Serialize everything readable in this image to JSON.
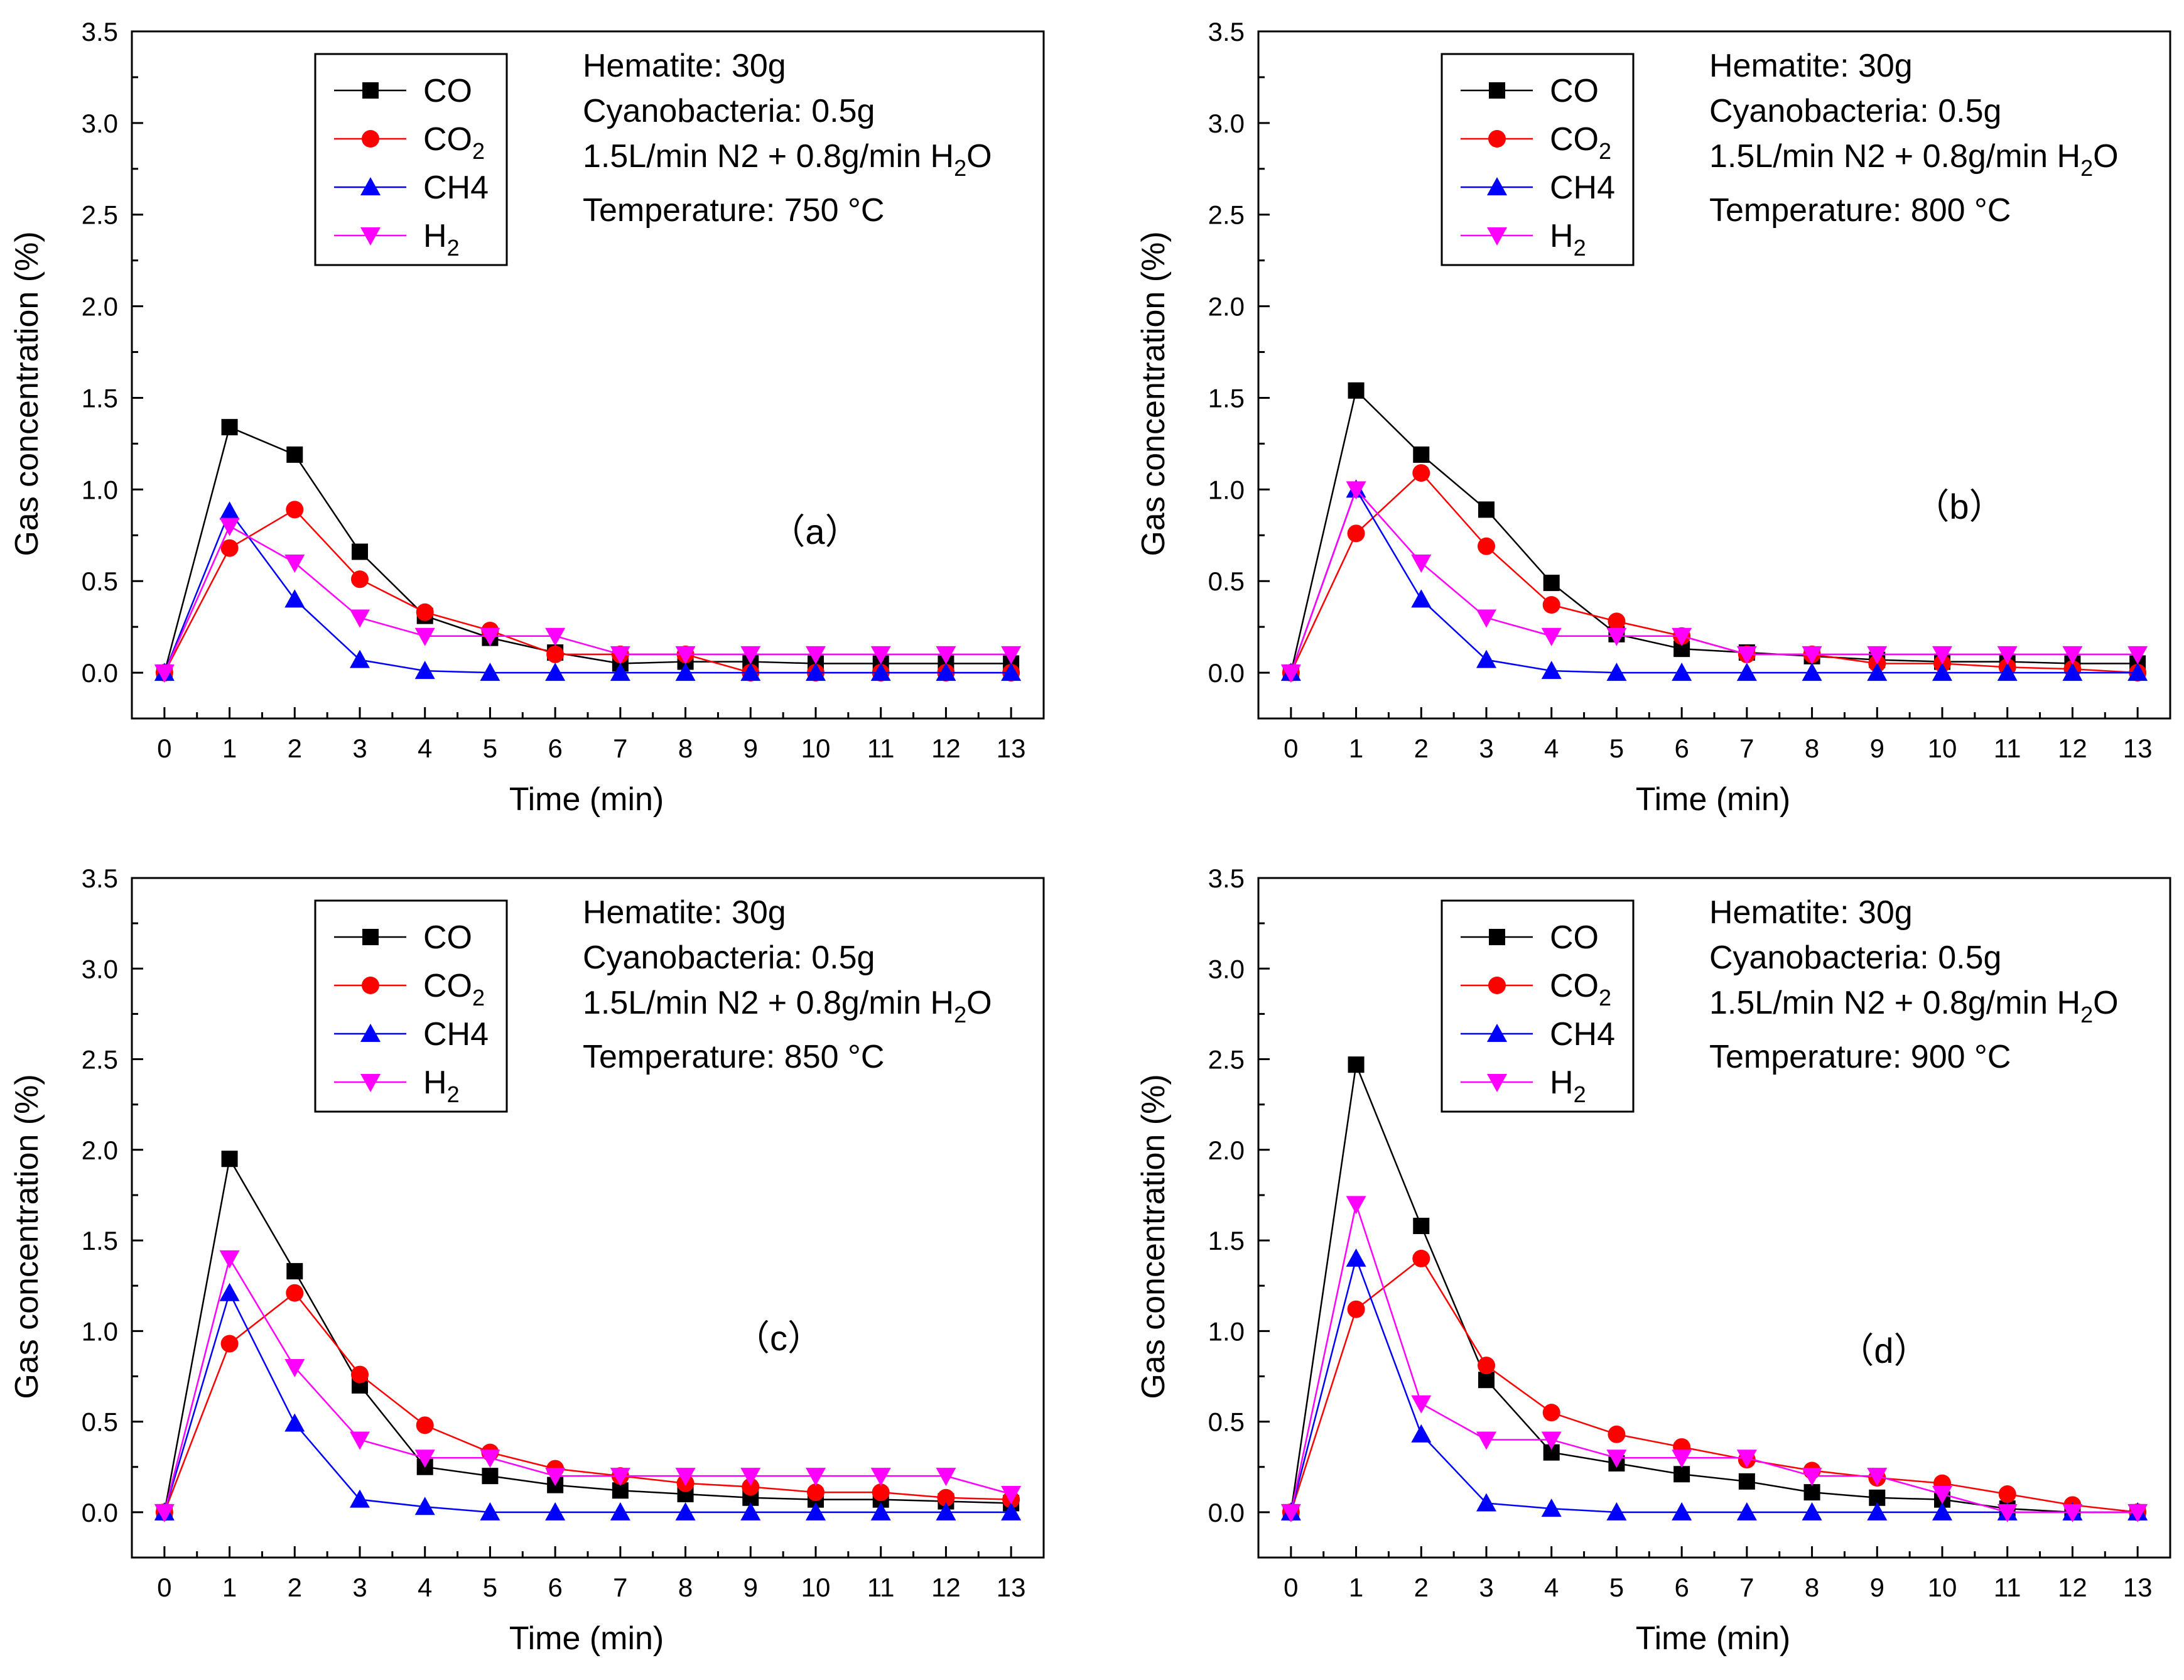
{
  "colors": {
    "CO": "#000000",
    "CO2": "#ff0000",
    "CH4": "#0000ff",
    "H2": "#ff00ff"
  },
  "chart_data": [
    {
      "type": "line",
      "panel_label": "（a）",
      "xlabel": "Time (min)",
      "ylabel": "Gas concentration (%)",
      "xlim": [
        -0.5,
        13.5
      ],
      "ylim": [
        -0.25,
        3.5
      ],
      "x": [
        0,
        1,
        2,
        3,
        4,
        5,
        6,
        7,
        8,
        9,
        10,
        11,
        12,
        13
      ],
      "x_ticks": [
        "0",
        "1",
        "2",
        "3",
        "4",
        "5",
        "6",
        "7",
        "8",
        "9",
        "10",
        "11",
        "12",
        "13"
      ],
      "y_ticks": [
        "0.0",
        "0.5",
        "1.0",
        "1.5",
        "2.0",
        "2.5",
        "3.0",
        "3.5"
      ],
      "legend": [
        {
          "key": "CO",
          "label": "CO",
          "sub": ""
        },
        {
          "key": "CO2",
          "label": "CO",
          "sub": "2"
        },
        {
          "key": "CH4",
          "label": "CH4",
          "sub": ""
        },
        {
          "key": "H2",
          "label": "H",
          "sub": "2"
        }
      ],
      "info": {
        "hematite": "Hematite: 30g",
        "cyanobacteria": "Cyanobacteria: 0.5g",
        "flow_prefix": "1.5L/min N2 + 0.8g/min H",
        "flow_sub": "2",
        "flow_suffix": "O",
        "temperature": "Temperature: 750 °C"
      },
      "series": [
        {
          "name": "CO",
          "marker": "square",
          "values": [
            0,
            1.34,
            1.19,
            0.66,
            0.31,
            0.19,
            0.11,
            0.05,
            0.06,
            0.06,
            0.05,
            0.05,
            0.05,
            0.05
          ]
        },
        {
          "name": "CO2",
          "marker": "circle",
          "values": [
            0,
            0.68,
            0.89,
            0.51,
            0.33,
            0.23,
            0.1,
            0.1,
            0.1,
            0.0,
            0.0,
            0.0,
            0.0,
            0.0
          ]
        },
        {
          "name": "CH4",
          "marker": "triangle-up",
          "values": [
            0,
            0.88,
            0.4,
            0.07,
            0.01,
            0.0,
            0.0,
            0.0,
            0.0,
            0.0,
            0.0,
            0.0,
            0.0,
            0.0
          ]
        },
        {
          "name": "H2",
          "marker": "triangle-down",
          "values": [
            0,
            0.8,
            0.6,
            0.3,
            0.2,
            0.2,
            0.2,
            0.1,
            0.1,
            0.1,
            0.1,
            0.1,
            0.1,
            0.1
          ]
        }
      ]
    },
    {
      "type": "line",
      "panel_label": "（b）",
      "xlabel": "Time (min)",
      "ylabel": "Gas concentration (%)",
      "xlim": [
        -0.5,
        13.5
      ],
      "ylim": [
        -0.25,
        3.5
      ],
      "x": [
        0,
        1,
        2,
        3,
        4,
        5,
        6,
        7,
        8,
        9,
        10,
        11,
        12,
        13
      ],
      "x_ticks": [
        "0",
        "1",
        "2",
        "3",
        "4",
        "5",
        "6",
        "7",
        "8",
        "9",
        "10",
        "11",
        "12",
        "13"
      ],
      "y_ticks": [
        "0.0",
        "0.5",
        "1.0",
        "1.5",
        "2.0",
        "2.5",
        "3.0",
        "3.5"
      ],
      "legend": [
        {
          "key": "CO",
          "label": "CO",
          "sub": ""
        },
        {
          "key": "CO2",
          "label": "CO",
          "sub": "2"
        },
        {
          "key": "CH4",
          "label": "CH4",
          "sub": ""
        },
        {
          "key": "H2",
          "label": "H",
          "sub": "2"
        }
      ],
      "info": {
        "hematite": "Hematite: 30g",
        "cyanobacteria": "Cyanobacteria: 0.5g",
        "flow_prefix": "1.5L/min N2 + 0.8g/min H",
        "flow_sub": "2",
        "flow_suffix": "O",
        "temperature": "Temperature: 800 °C"
      },
      "series": [
        {
          "name": "CO",
          "marker": "square",
          "values": [
            0,
            1.54,
            1.19,
            0.89,
            0.49,
            0.21,
            0.13,
            0.11,
            0.09,
            0.07,
            0.06,
            0.06,
            0.05,
            0.05
          ]
        },
        {
          "name": "CO2",
          "marker": "circle",
          "values": [
            0,
            0.76,
            1.09,
            0.69,
            0.37,
            0.28,
            0.2,
            0.1,
            0.1,
            0.05,
            0.05,
            0.03,
            0.02,
            0.0
          ]
        },
        {
          "name": "CH4",
          "marker": "triangle-up",
          "values": [
            0,
            1.0,
            0.4,
            0.07,
            0.01,
            0.0,
            0.0,
            0.0,
            0.0,
            0.0,
            0.0,
            0.0,
            0.0,
            0.0
          ]
        },
        {
          "name": "H2",
          "marker": "triangle-down",
          "values": [
            0,
            1.0,
            0.6,
            0.3,
            0.2,
            0.2,
            0.2,
            0.1,
            0.1,
            0.1,
            0.1,
            0.1,
            0.1,
            0.1
          ]
        }
      ]
    },
    {
      "type": "line",
      "panel_label": "（c）",
      "xlabel": "Time (min)",
      "ylabel": "Gas concentration (%)",
      "xlim": [
        -0.5,
        13.5
      ],
      "ylim": [
        -0.25,
        3.5
      ],
      "x": [
        0,
        1,
        2,
        3,
        4,
        5,
        6,
        7,
        8,
        9,
        10,
        11,
        12,
        13
      ],
      "x_ticks": [
        "0",
        "1",
        "2",
        "3",
        "4",
        "5",
        "6",
        "7",
        "8",
        "9",
        "10",
        "11",
        "12",
        "13"
      ],
      "y_ticks": [
        "0.0",
        "0.5",
        "1.0",
        "1.5",
        "2.0",
        "2.5",
        "3.0",
        "3.5"
      ],
      "legend": [
        {
          "key": "CO",
          "label": "CO",
          "sub": ""
        },
        {
          "key": "CO2",
          "label": "CO",
          "sub": "2"
        },
        {
          "key": "CH4",
          "label": "CH4",
          "sub": ""
        },
        {
          "key": "H2",
          "label": "H",
          "sub": "2"
        }
      ],
      "info": {
        "hematite": "Hematite: 30g",
        "cyanobacteria": "Cyanobacteria: 0.5g",
        "flow_prefix": "1.5L/min N2 + 0.8g/min H",
        "flow_sub": "2",
        "flow_suffix": "O",
        "temperature": "Temperature: 850 °C"
      },
      "series": [
        {
          "name": "CO",
          "marker": "square",
          "values": [
            0,
            1.95,
            1.33,
            0.7,
            0.25,
            0.2,
            0.15,
            0.12,
            0.1,
            0.08,
            0.07,
            0.07,
            0.06,
            0.05
          ]
        },
        {
          "name": "CO2",
          "marker": "circle",
          "values": [
            0,
            0.93,
            1.21,
            0.76,
            0.48,
            0.33,
            0.24,
            0.2,
            0.16,
            0.14,
            0.11,
            0.11,
            0.08,
            0.07
          ]
        },
        {
          "name": "CH4",
          "marker": "triangle-up",
          "values": [
            0,
            1.21,
            0.49,
            0.07,
            0.03,
            0.0,
            0.0,
            0.0,
            0.0,
            0.0,
            0.0,
            0.0,
            0.0,
            0.0
          ]
        },
        {
          "name": "H2",
          "marker": "triangle-down",
          "values": [
            0,
            1.4,
            0.8,
            0.4,
            0.3,
            0.3,
            0.2,
            0.2,
            0.2,
            0.2,
            0.2,
            0.2,
            0.2,
            0.1
          ]
        }
      ]
    },
    {
      "type": "line",
      "panel_label": "（d）",
      "xlabel": "Time (min)",
      "ylabel": "Gas concentration (%)",
      "xlim": [
        -0.5,
        13.5
      ],
      "ylim": [
        -0.25,
        3.5
      ],
      "x": [
        0,
        1,
        2,
        3,
        4,
        5,
        6,
        7,
        8,
        9,
        10,
        11,
        12,
        13
      ],
      "x_ticks": [
        "0",
        "1",
        "2",
        "3",
        "4",
        "5",
        "6",
        "7",
        "8",
        "9",
        "10",
        "11",
        "12",
        "13"
      ],
      "y_ticks": [
        "0.0",
        "0.5",
        "1.0",
        "1.5",
        "2.0",
        "2.5",
        "3.0",
        "3.5"
      ],
      "legend": [
        {
          "key": "CO",
          "label": "CO",
          "sub": ""
        },
        {
          "key": "CO2",
          "label": "CO",
          "sub": "2"
        },
        {
          "key": "CH4",
          "label": "CH4",
          "sub": ""
        },
        {
          "key": "H2",
          "label": "H",
          "sub": "2"
        }
      ],
      "info": {
        "hematite": "Hematite: 30g",
        "cyanobacteria": "Cyanobacteria: 0.5g",
        "flow_prefix": "1.5L/min N2 + 0.8g/min H",
        "flow_sub": "2",
        "flow_suffix": "O",
        "temperature": "Temperature: 900 °C"
      },
      "series": [
        {
          "name": "CO",
          "marker": "square",
          "values": [
            0,
            2.47,
            1.58,
            0.73,
            0.33,
            0.27,
            0.21,
            0.17,
            0.11,
            0.08,
            0.07,
            0.02,
            0.0,
            0.0
          ]
        },
        {
          "name": "CO2",
          "marker": "circle",
          "values": [
            0,
            1.12,
            1.4,
            0.81,
            0.55,
            0.43,
            0.36,
            0.29,
            0.23,
            0.19,
            0.16,
            0.1,
            0.04,
            0.0
          ]
        },
        {
          "name": "CH4",
          "marker": "triangle-up",
          "values": [
            0,
            1.4,
            0.43,
            0.05,
            0.02,
            0.0,
            0.0,
            0.0,
            0.0,
            0.0,
            0.0,
            0.0,
            0.0,
            0.0
          ]
        },
        {
          "name": "H2",
          "marker": "triangle-down",
          "values": [
            0,
            1.7,
            0.6,
            0.4,
            0.4,
            0.3,
            0.3,
            0.3,
            0.2,
            0.2,
            0.1,
            0.0,
            0.0,
            0.0
          ]
        }
      ]
    }
  ]
}
